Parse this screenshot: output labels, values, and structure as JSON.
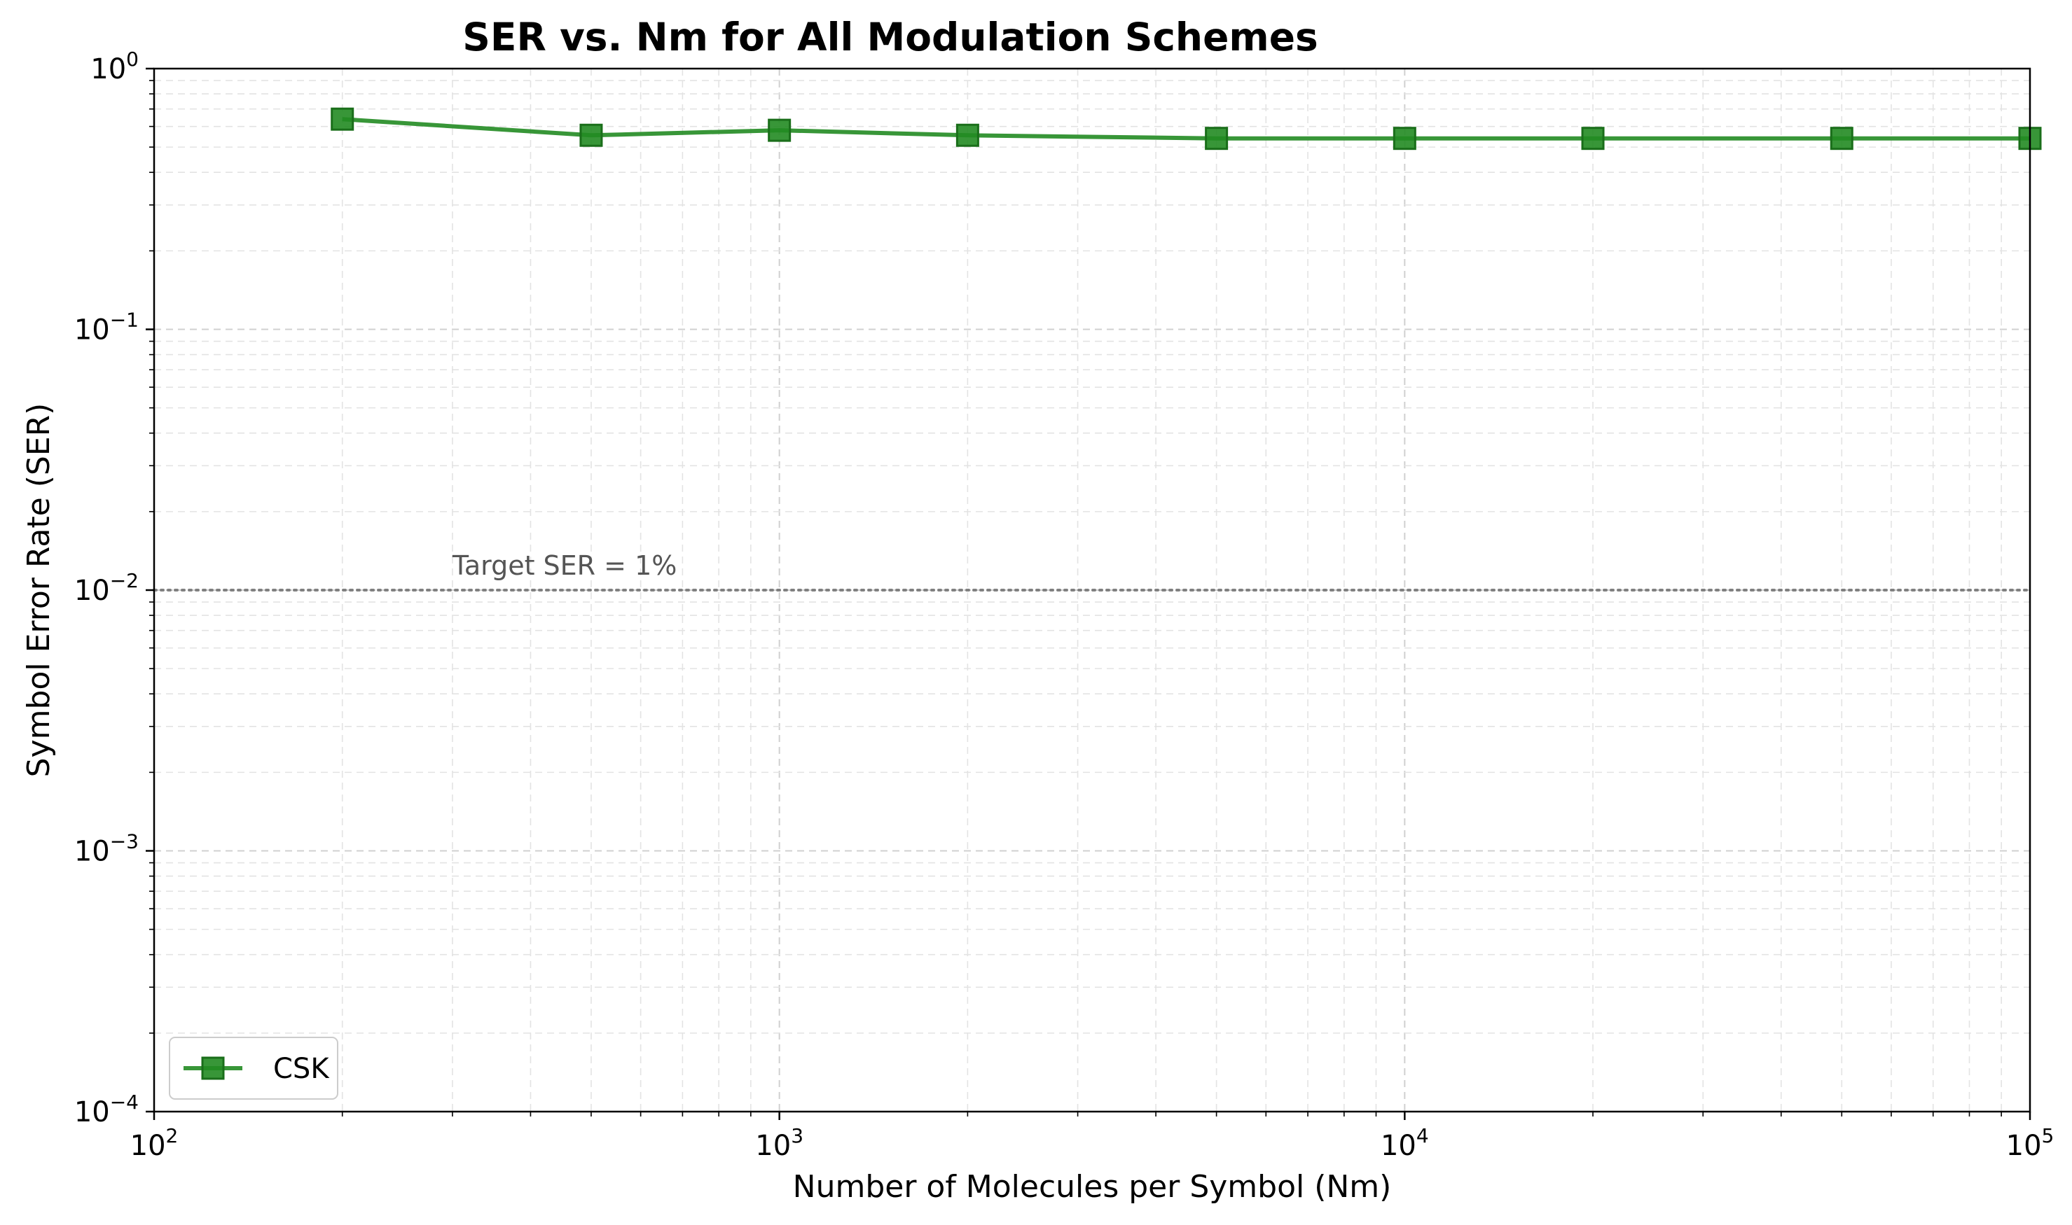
{
  "chart_data": {
    "type": "line",
    "title": "SER vs. Nm for All Modulation Schemes",
    "xlabel": "Number of Molecules per Symbol (Nm)",
    "ylabel": "Symbol Error Rate (SER)",
    "xscale": "log",
    "yscale": "log",
    "xlim": [
      100,
      100000
    ],
    "ylim": [
      0.0001,
      1
    ],
    "x_ticks": [
      {
        "value": 100,
        "base": "10",
        "exp": "2"
      },
      {
        "value": 1000,
        "base": "10",
        "exp": "3"
      },
      {
        "value": 10000,
        "base": "10",
        "exp": "4"
      },
      {
        "value": 100000,
        "base": "10",
        "exp": "5"
      }
    ],
    "y_ticks": [
      {
        "value": 0.0001,
        "base": "10",
        "exp": "−4"
      },
      {
        "value": 0.001,
        "base": "10",
        "exp": "−3"
      },
      {
        "value": 0.01,
        "base": "10",
        "exp": "−2"
      },
      {
        "value": 0.1,
        "base": "10",
        "exp": "−1"
      },
      {
        "value": 1,
        "base": "10",
        "exp": "0"
      }
    ],
    "grid": true,
    "legend_position": "bottom-left",
    "series": [
      {
        "name": "CSK",
        "color": "#228b22",
        "marker": "square",
        "x": [
          200,
          500,
          1000,
          2000,
          5000,
          10000,
          20000,
          50000,
          100000
        ],
        "y": [
          0.64,
          0.555,
          0.58,
          0.555,
          0.54,
          0.54,
          0.54,
          0.54,
          0.54
        ]
      }
    ],
    "reference_line": {
      "y": 0.01,
      "color": "#808080",
      "style": "dotted",
      "label": "Target SER = 1%",
      "label_x": 300
    }
  }
}
